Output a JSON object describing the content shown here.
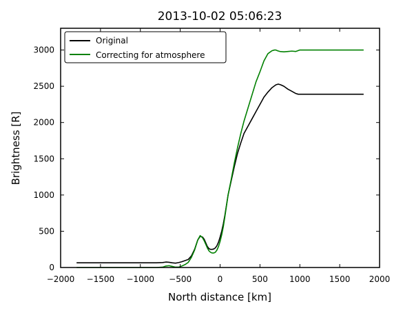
{
  "chart_data": {
    "type": "line",
    "title": "2013-10-02 05:06:23",
    "xlabel": "North distance [km]",
    "ylabel": "Brightness [R]",
    "xlim": [
      -2000,
      2000
    ],
    "ylim": [
      0,
      3300
    ],
    "xticks": [
      -2000,
      -1500,
      -1000,
      -500,
      0,
      500,
      1000,
      1500,
      2000
    ],
    "yticks": [
      0,
      500,
      1000,
      1500,
      2000,
      2500,
      3000
    ],
    "xtick_labels": [
      "−2000",
      "−1500",
      "−1000",
      "−500",
      "0",
      "500",
      "1000",
      "1500",
      "2000"
    ],
    "ytick_labels": [
      "0",
      "500",
      "1000",
      "1500",
      "2000",
      "2500",
      "3000"
    ],
    "grid": false,
    "legend_position": "top-left",
    "series": [
      {
        "name": "Original",
        "color": "#000000",
        "x": [
          -1800,
          -1500,
          -1200,
          -900,
          -800,
          -720,
          -680,
          -640,
          -600,
          -560,
          -520,
          -480,
          -440,
          -400,
          -360,
          -320,
          -280,
          -250,
          -220,
          -200,
          -180,
          -160,
          -140,
          -120,
          -100,
          -80,
          -60,
          -40,
          -20,
          0,
          20,
          40,
          60,
          80,
          100,
          140,
          180,
          220,
          260,
          300,
          350,
          400,
          450,
          500,
          550,
          600,
          650,
          700,
          730,
          760,
          800,
          850,
          900,
          950,
          980,
          1000,
          1100,
          1200,
          1400,
          1600,
          1800
        ],
        "y": [
          65,
          65,
          65,
          65,
          65,
          68,
          75,
          72,
          65,
          60,
          68,
          80,
          95,
          110,
          160,
          250,
          380,
          430,
          420,
          390,
          340,
          290,
          260,
          250,
          250,
          255,
          270,
          300,
          350,
          420,
          500,
          600,
          720,
          860,
          1000,
          1200,
          1400,
          1580,
          1720,
          1850,
          1950,
          2050,
          2150,
          2250,
          2350,
          2420,
          2480,
          2520,
          2530,
          2520,
          2500,
          2460,
          2430,
          2400,
          2390,
          2390,
          2390,
          2390,
          2390,
          2390,
          2390
        ]
      },
      {
        "name": "Correcting for atmosphere",
        "color": "#008000",
        "x": [
          -1800,
          -1500,
          -1200,
          -900,
          -800,
          -720,
          -680,
          -640,
          -600,
          -560,
          -520,
          -480,
          -440,
          -400,
          -360,
          -320,
          -280,
          -250,
          -220,
          -200,
          -180,
          -160,
          -140,
          -120,
          -100,
          -80,
          -60,
          -40,
          -20,
          0,
          20,
          40,
          60,
          80,
          100,
          140,
          180,
          220,
          260,
          300,
          350,
          400,
          450,
          500,
          550,
          600,
          650,
          680,
          700,
          720,
          750,
          800,
          850,
          900,
          950,
          1000,
          1100,
          1200,
          1400,
          1600,
          1800
        ],
        "y": [
          0,
          0,
          0,
          0,
          0,
          5,
          20,
          25,
          15,
          5,
          5,
          20,
          40,
          70,
          140,
          240,
          380,
          440,
          410,
          370,
          320,
          270,
          230,
          210,
          200,
          200,
          210,
          240,
          290,
          360,
          450,
          560,
          700,
          850,
          1000,
          1220,
          1450,
          1660,
          1850,
          2020,
          2200,
          2380,
          2560,
          2700,
          2850,
          2950,
          2990,
          3000,
          3000,
          2990,
          2980,
          2975,
          2980,
          2985,
          2980,
          3000,
          3000,
          3000,
          3000,
          3000,
          3000
        ]
      }
    ]
  }
}
